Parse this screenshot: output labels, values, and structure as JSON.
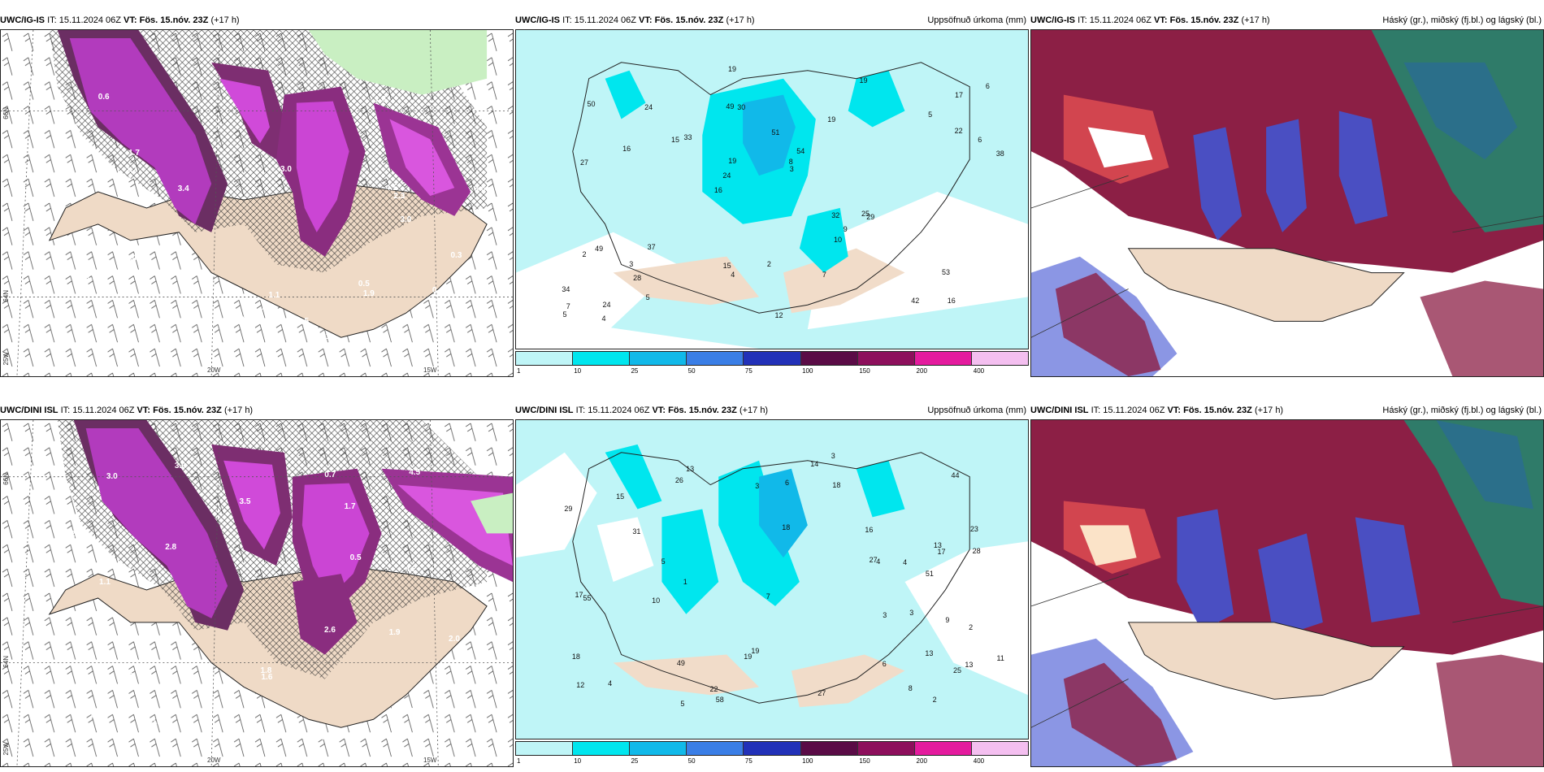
{
  "panels": [
    {
      "model": "UWC/IG-IS",
      "it": "IT: 15.11.2024 06Z",
      "vt": "VT: Fös. 15.nóv. 23Z",
      "lead": "(+17 h)",
      "right_title": ""
    },
    {
      "model": "UWC/IG-IS",
      "it": "IT: 15.11.2024 06Z",
      "vt": "VT: Fös. 15.nóv. 23Z",
      "lead": "(+17 h)",
      "right_title": "Uppsöfnuð úrkoma (mm)"
    },
    {
      "model": "UWC/IG-IS",
      "it": "IT: 15.11.2024 06Z",
      "vt": "VT: Fös. 15.nóv. 23Z",
      "lead": "(+17 h)",
      "right_title": "Háský (gr.), miðský (fj.bl.) og lágský (bl.)"
    },
    {
      "model": "UWC/DINI ISL",
      "it": "IT: 15.11.2024 06Z",
      "vt": "VT: Fös. 15.nóv. 23Z",
      "lead": "(+17 h)",
      "right_title": ""
    },
    {
      "model": "UWC/DINI ISL",
      "it": "IT: 15.11.2024 06Z",
      "vt": "VT: Fös. 15.nóv. 23Z",
      "lead": "(+17 h)",
      "right_title": "Uppsöfnuð úrkoma (mm)"
    },
    {
      "model": "UWC/DINI ISL",
      "it": "IT: 15.11.2024 06Z",
      "vt": "VT: Fös. 15.nóv. 23Z",
      "lead": "(+17 h)",
      "right_title": "Háský (gr.), miðský (fj.bl.) og lágský (bl.)"
    }
  ],
  "grid_labels": {
    "lat_66": "66N",
    "lat_64": "64N",
    "lon_25": "25W",
    "lon_20": "20W",
    "lon_15": "15W"
  },
  "colorbar": {
    "ticks": [
      "1",
      "10",
      "25",
      "50",
      "75",
      "100",
      "150",
      "200",
      "400"
    ],
    "colors": [
      "#bff5f7",
      "#00e6ee",
      "#11b9e9",
      "#3a7ee6",
      "#2231b8",
      "#5a0b46",
      "#8d0f5c",
      "#e41b9e",
      "#f4bff0"
    ]
  },
  "precip_top": [
    {
      "v": "16"
    },
    {
      "v": "27"
    },
    {
      "v": "17"
    },
    {
      "v": "16"
    },
    {
      "v": "19"
    },
    {
      "v": "24"
    },
    {
      "v": "49"
    },
    {
      "v": "51"
    },
    {
      "v": "49"
    },
    {
      "v": "33"
    },
    {
      "v": "34"
    },
    {
      "v": "28"
    },
    {
      "v": "30"
    },
    {
      "v": "54"
    },
    {
      "v": "29"
    },
    {
      "v": "50"
    },
    {
      "v": "19"
    },
    {
      "v": "38"
    },
    {
      "v": "32"
    },
    {
      "v": "22"
    },
    {
      "v": "24"
    },
    {
      "v": "15"
    },
    {
      "v": "19"
    },
    {
      "v": "24"
    },
    {
      "v": "19"
    },
    {
      "v": "37"
    },
    {
      "v": "42"
    },
    {
      "v": "53"
    },
    {
      "v": "25"
    },
    {
      "v": "12"
    },
    {
      "v": "15"
    },
    {
      "v": "16"
    },
    {
      "v": "10"
    },
    {
      "v": "5"
    },
    {
      "v": "6"
    },
    {
      "v": "8"
    },
    {
      "v": "7"
    },
    {
      "v": "4"
    },
    {
      "v": "3"
    },
    {
      "v": "2"
    },
    {
      "v": "5"
    },
    {
      "v": "6"
    },
    {
      "v": "9"
    },
    {
      "v": "7"
    },
    {
      "v": "3"
    },
    {
      "v": "4"
    },
    {
      "v": "5"
    },
    {
      "v": "2"
    }
  ],
  "precip_bottom": [
    {
      "v": "13"
    },
    {
      "v": "23"
    },
    {
      "v": "13"
    },
    {
      "v": "18"
    },
    {
      "v": "12"
    },
    {
      "v": "13"
    },
    {
      "v": "13"
    },
    {
      "v": "49"
    },
    {
      "v": "44"
    },
    {
      "v": "31"
    },
    {
      "v": "28"
    },
    {
      "v": "29"
    },
    {
      "v": "51"
    },
    {
      "v": "58"
    },
    {
      "v": "18"
    },
    {
      "v": "15"
    },
    {
      "v": "25"
    },
    {
      "v": "26"
    },
    {
      "v": "19"
    },
    {
      "v": "17"
    },
    {
      "v": "17"
    },
    {
      "v": "55"
    },
    {
      "v": "27"
    },
    {
      "v": "27"
    },
    {
      "v": "22"
    },
    {
      "v": "19"
    },
    {
      "v": "14"
    },
    {
      "v": "18"
    },
    {
      "v": "16"
    },
    {
      "v": "11"
    },
    {
      "v": "10"
    },
    {
      "v": "6"
    },
    {
      "v": "5"
    },
    {
      "v": "7"
    },
    {
      "v": "9"
    },
    {
      "v": "8"
    },
    {
      "v": "4"
    },
    {
      "v": "3"
    },
    {
      "v": "2"
    },
    {
      "v": "1"
    },
    {
      "v": "3"
    },
    {
      "v": "4"
    },
    {
      "v": "6"
    },
    {
      "v": "5"
    },
    {
      "v": "2"
    },
    {
      "v": "3"
    },
    {
      "v": "4"
    },
    {
      "v": "3"
    }
  ],
  "temp_top": [
    "1.2",
    "1.1",
    "3.0",
    "2.5",
    "3.5",
    "1.3",
    "2.4",
    "5.2",
    "4.5",
    "1.7",
    "1.4",
    "0.4",
    "0.6",
    "2.1",
    "1.6",
    "1.5",
    "0.5",
    "1.9",
    "0.3",
    "2.3",
    "0.6",
    "3.0",
    "1.2",
    "3.4"
  ],
  "temp_bottom": [
    "2.0",
    "1.9",
    "1.6",
    "1.2",
    "1.8",
    "2.8",
    "3.0",
    "1.7",
    "1.3",
    "4.2",
    "2.6",
    "4.5",
    "0.6",
    "0.5",
    "0.3",
    "3.0",
    "2.2",
    "1.6",
    "0.7",
    "3.5",
    "2.5",
    "1.9",
    "0.4",
    "1.1"
  ]
}
